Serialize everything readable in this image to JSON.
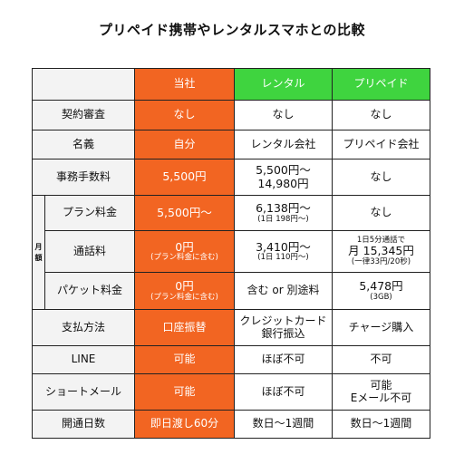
{
  "title": "プリペイド携帯やレンタルスマホとの比較",
  "columns": {
    "ours": "当社",
    "rental": "レンタル",
    "prepaid": "プリペイド"
  },
  "monthly_label": [
    "月",
    "額"
  ],
  "rows": {
    "contract": {
      "label": "契約審査",
      "ours": "なし",
      "rental": "なし",
      "prepaid": "なし"
    },
    "name": {
      "label": "名義",
      "ours": "自分",
      "rental": "レンタル会社",
      "prepaid": "プリペイド会社"
    },
    "fee": {
      "label": "事務手数料",
      "ours": "5,500円",
      "rental": "5,500円〜",
      "rental2": "14,980円",
      "prepaid": "なし"
    },
    "plan": {
      "label": "プラン料金",
      "ours": "5,500円〜",
      "rental": "6,138円〜",
      "rental_sub": "(1日 198円〜)",
      "prepaid": "なし"
    },
    "call": {
      "label": "通話料",
      "ours": "0円",
      "ours_sub": "(プラン料金に含む)",
      "rental": "3,410円〜",
      "rental_sub": "(1日 110円〜)",
      "prepaid_top": "1日5分通話で",
      "prepaid": "月 15,345円",
      "prepaid_sub": "(一律33円/20秒)"
    },
    "packet": {
      "label": "パケット料金",
      "ours": "0円",
      "ours_sub": "(プラン料金に含む)",
      "rental": "含む or 別途料",
      "prepaid": "5,478円",
      "prepaid_sub": "(3GB)"
    },
    "payment": {
      "label": "支払方法",
      "ours": "口座振替",
      "rental": "クレジットカード",
      "rental2": "銀行振込",
      "prepaid": "チャージ購入"
    },
    "line": {
      "label": "LINE",
      "ours": "可能",
      "rental": "ほぼ不可",
      "prepaid": "不可"
    },
    "sms": {
      "label": "ショートメール",
      "ours": "可能",
      "rental": "ほぼ不可",
      "prepaid": "可能",
      "prepaid2": "Eメール不可"
    },
    "days": {
      "label": "開通日数",
      "ours": "即日渡し60分",
      "rental": "数日〜1週間",
      "prepaid": "数日〜1週間"
    }
  },
  "colors": {
    "accent_orange": "#f26522",
    "accent_green": "#3fd43f"
  }
}
